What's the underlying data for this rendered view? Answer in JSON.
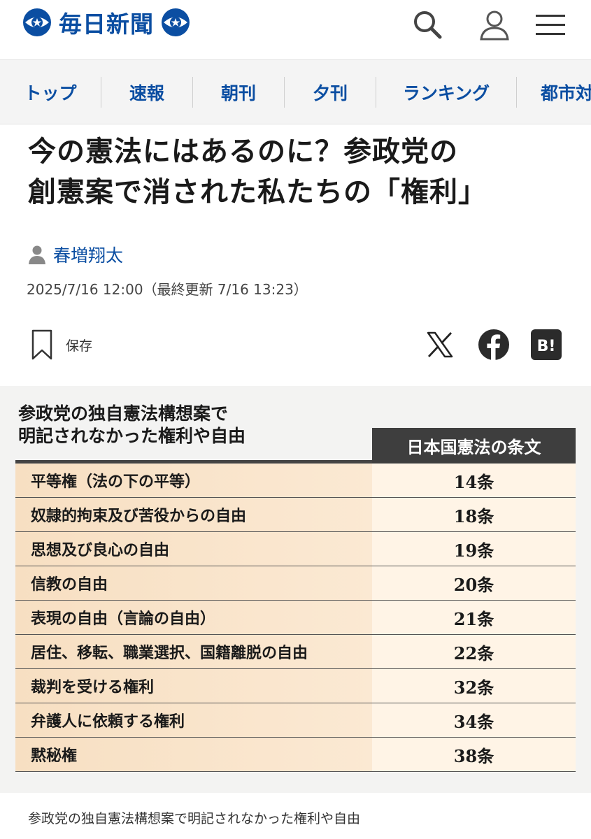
{
  "header": {
    "logo_text": "毎日新聞",
    "brand_color": "#0b4ea2",
    "icons": [
      "search-icon",
      "user-icon",
      "menu-icon"
    ]
  },
  "nav": {
    "items": [
      {
        "label": "トップ"
      },
      {
        "label": "速報"
      },
      {
        "label": "朝刊"
      },
      {
        "label": "夕刊"
      },
      {
        "label": "ランキング"
      },
      {
        "label": "都市対"
      }
    ]
  },
  "article": {
    "title_line1": "今の憲法にはあるのに？参政党の",
    "title_line2": "創憲案で消された私たちの「権利」",
    "author": "春増翔太",
    "date": "2025/7/16 12:00（最終更新 7/16 13:23）",
    "save_label": "保存",
    "share_icons": [
      "x-icon",
      "facebook-icon",
      "hatena-bookmark-icon"
    ],
    "hatena_label": "B!"
  },
  "figure": {
    "heading_line1": "参政党の独自憲法構想案で",
    "heading_line2": "明記されなかった権利や自由",
    "column_header": "日本国憲法の条文",
    "rows": [
      {
        "right": "平等権（法の下の平等）",
        "article": "14条"
      },
      {
        "right": "奴隷的拘束及び苦役からの自由",
        "article": "18条"
      },
      {
        "right": "思想及び良心の自由",
        "article": "19条"
      },
      {
        "right": "信教の自由",
        "article": "20条"
      },
      {
        "right": "表現の自由（言論の自由）",
        "article": "21条"
      },
      {
        "right": "居住、移転、職業選択、国籍離脱の自由",
        "article": "22条"
      },
      {
        "right": "裁判を受ける権利",
        "article": "32条"
      },
      {
        "right": "弁護人に依頼する権利",
        "article": "34条"
      },
      {
        "right": "黙秘権",
        "article": "38条"
      }
    ],
    "caption": "参政党の独自憲法構想案で明記されなかった権利や自由"
  }
}
